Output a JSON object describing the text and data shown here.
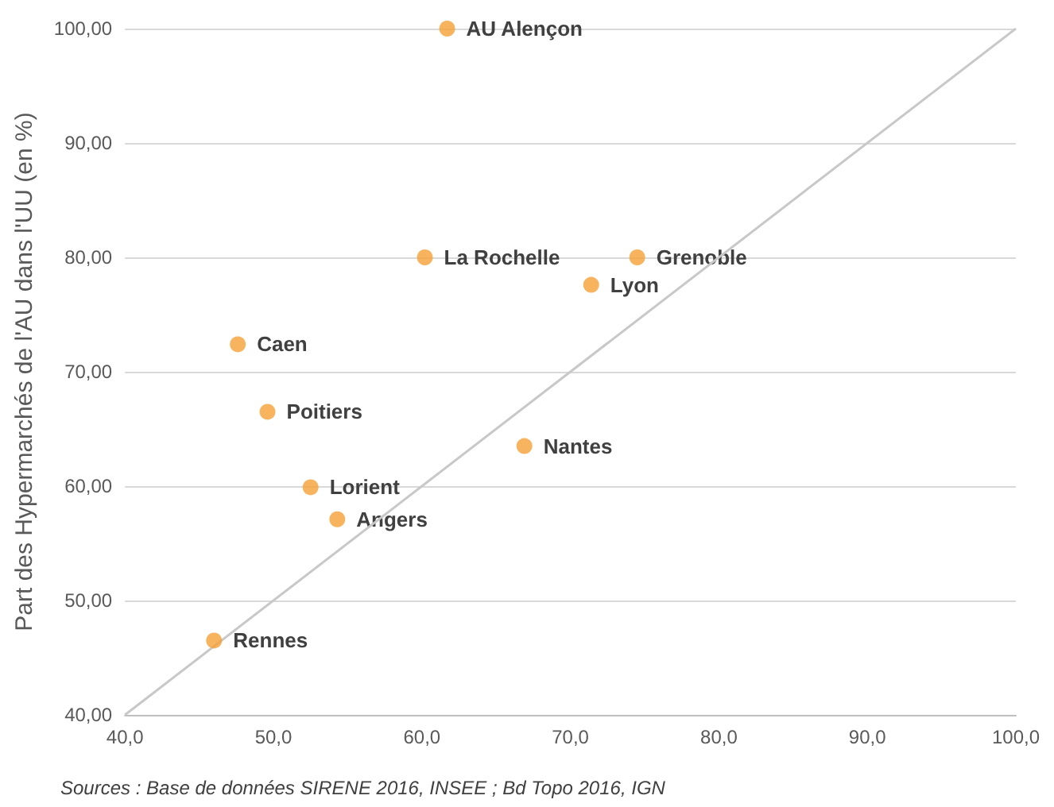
{
  "chart_data": {
    "type": "scatter",
    "ylabel": "Part des Hypermarchés de l'AU dans l'UU (en %)",
    "x": [
      61.7,
      60.2,
      74.5,
      71.4,
      47.6,
      49.6,
      66.9,
      52.5,
      54.3,
      46.0
    ],
    "series": [
      {
        "color": "#f5a034",
        "values": [
          100,
          80,
          80,
          77.6,
          72.4,
          66.5,
          63.5,
          59.9,
          57.1,
          46.5
        ]
      },
      {
        "type": "line",
        "color": "#c8c8c8",
        "x": [
          40,
          100
        ],
        "values": [
          40,
          100
        ],
        "marker": "none"
      }
    ],
    "xlim": [
      40,
      100
    ],
    "ylim": [
      40,
      100
    ],
    "xticks": [
      {
        "value": 40,
        "label": "40,0"
      },
      {
        "value": 50,
        "label": "50,0"
      },
      {
        "value": 60,
        "label": "60,0"
      },
      {
        "value": 70,
        "label": "70,0"
      },
      {
        "value": 80,
        "label": "80,0"
      },
      {
        "value": 90,
        "label": "90,0"
      },
      {
        "value": 100,
        "label": "100,0"
      }
    ],
    "yticks": [
      {
        "value": 40,
        "label": "40,00"
      },
      {
        "value": 50,
        "label": "50,00"
      },
      {
        "value": 60,
        "label": "60,00"
      },
      {
        "value": 70,
        "label": "70,00"
      },
      {
        "value": 80,
        "label": "80,00"
      },
      {
        "value": 90,
        "label": "90,00"
      },
      {
        "value": 100,
        "label": "100,00"
      }
    ],
    "grid": "y",
    "marker": "circle",
    "annotations": [
      {
        "text": "AU Alençon",
        "x": 61.7,
        "y": 100
      },
      {
        "text": "La Rochelle",
        "x": 60.2,
        "y": 80
      },
      {
        "text": "Grenoble",
        "x": 74.5,
        "y": 80
      },
      {
        "text": "Lyon",
        "x": 71.4,
        "y": 77.6
      },
      {
        "text": "Caen",
        "x": 47.6,
        "y": 72.4
      },
      {
        "text": "Poitiers",
        "x": 49.6,
        "y": 66.5
      },
      {
        "text": "Nantes",
        "x": 66.9,
        "y": 63.5
      },
      {
        "text": "Lorient",
        "x": 52.5,
        "y": 59.9
      },
      {
        "text": "Angers",
        "x": 54.3,
        "y": 57.1
      },
      {
        "text": "Rennes",
        "x": 46.0,
        "y": 46.5
      },
      "Sources : Base de données SIRENE 2016, INSEE ; Bd Topo 2016, IGN"
    ]
  }
}
